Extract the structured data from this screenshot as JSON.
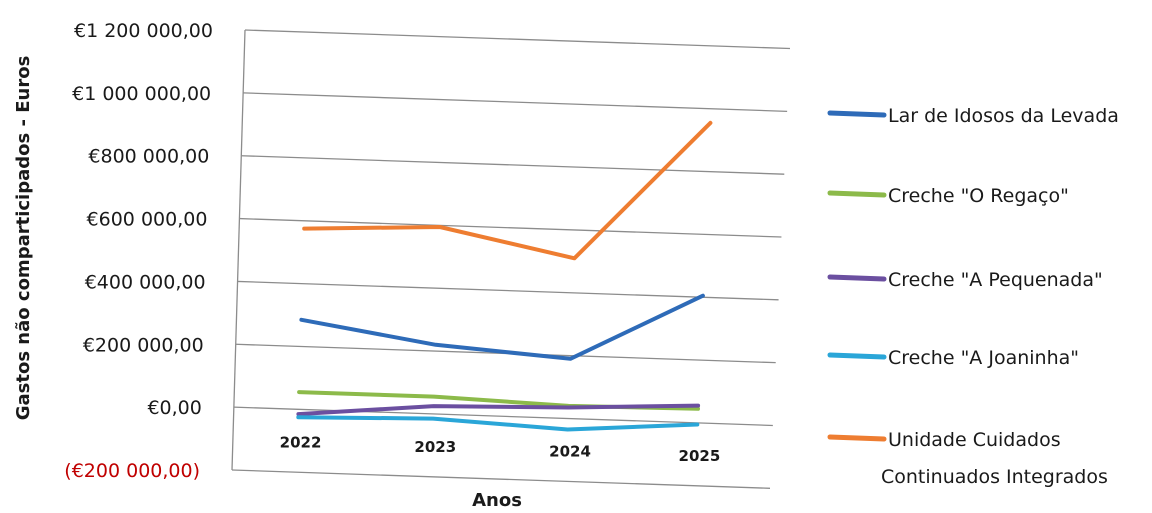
{
  "chart_data": {
    "type": "line",
    "title": "",
    "xlabel": "Anos",
    "ylabel": "Gastos não comparticipados - Euros",
    "categories": [
      "2022",
      "2023",
      "2024",
      "2025"
    ],
    "ylim": [
      -200000,
      1200000
    ],
    "yticks": [
      {
        "value": 1200000,
        "label": "€1 200 000,00"
      },
      {
        "value": 1000000,
        "label": "€1 000 000,00"
      },
      {
        "value": 800000,
        "label": "€800 000,00"
      },
      {
        "value": 600000,
        "label": "€600 000,00"
      },
      {
        "value": 400000,
        "label": "€400 000,00"
      },
      {
        "value": 200000,
        "label": "€200 000,00"
      },
      {
        "value": 0,
        "label": "€0,00"
      },
      {
        "value": -200000,
        "label": "(€200 000,00)",
        "negative": true
      }
    ],
    "grid": true,
    "legend_position": "right",
    "series": [
      {
        "name": "Lar de Idosos da Levada",
        "color": "#2e6bb8",
        "values": [
          285000,
          220000,
          190000,
          405000
        ]
      },
      {
        "name": "Creche \"O Regaço\"",
        "color": "#8cba4a",
        "values": [
          55000,
          55000,
          40000,
          45000
        ]
      },
      {
        "name": "Creche \"A Pequenada\"",
        "color": "#6b4fa0",
        "values": [
          -15000,
          25000,
          35000,
          55000
        ]
      },
      {
        "name": "Creche \"A Joaninha\"",
        "color": "#2aa6d8",
        "values": [
          -25000,
          -15000,
          -35000,
          -5000
        ]
      },
      {
        "name": "Unidade Cuidados Continuados Integrados",
        "color": "#ee7d31",
        "values": [
          575000,
          595000,
          510000,
          955000
        ]
      }
    ],
    "legend_lines": [
      [
        "Lar de Idosos da Levada"
      ],
      [
        "Creche \"O Regaço\""
      ],
      [
        "Creche \"A Pequenada\""
      ],
      [
        "Creche \"A Joaninha\""
      ],
      [
        "Unidade Cuidados",
        "Continuados Integrados"
      ]
    ]
  }
}
